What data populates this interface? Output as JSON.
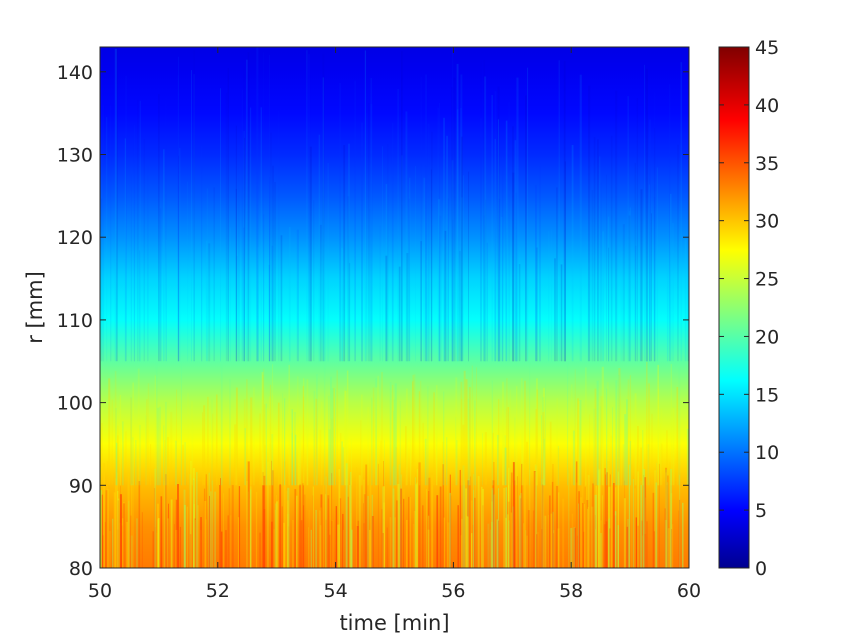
{
  "chart_data": {
    "type": "heatmap",
    "title": "",
    "xlabel": "time [min]",
    "ylabel": "r [mm]",
    "xlim": [
      50,
      60
    ],
    "ylim": [
      80,
      143
    ],
    "x_ticks": [
      "50",
      "52",
      "54",
      "56",
      "58",
      "60"
    ],
    "y_ticks": [
      "80",
      "90",
      "100",
      "110",
      "120",
      "130",
      "140"
    ],
    "colorbar": {
      "colormap": "jet",
      "range": [
        0,
        45
      ],
      "ticks": [
        "0",
        "5",
        "10",
        "15",
        "20",
        "25",
        "30",
        "35",
        "40",
        "45"
      ]
    },
    "profile": {
      "r": [
        80,
        85,
        90,
        95,
        100,
        105,
        110,
        115,
        120,
        125,
        130,
        135,
        140,
        143
      ],
      "value": [
        34,
        33,
        31,
        28,
        25,
        21,
        17,
        15,
        12,
        9.5,
        7.5,
        6,
        5,
        4.5
      ]
    },
    "fluctuation_note": ""
  }
}
